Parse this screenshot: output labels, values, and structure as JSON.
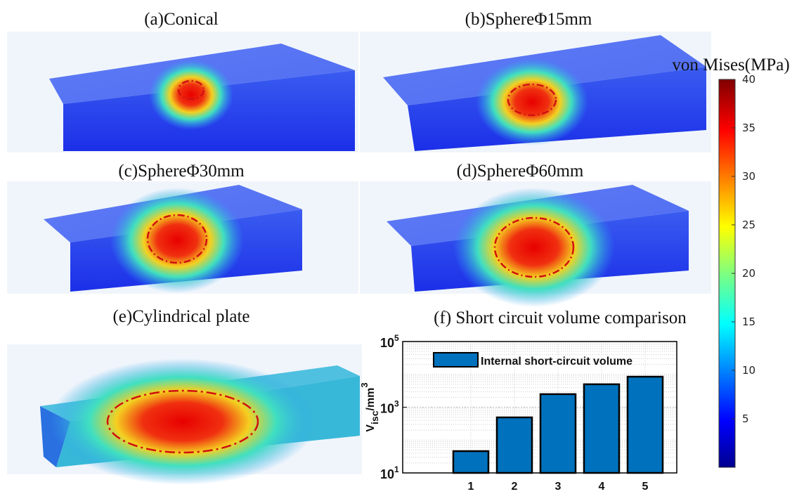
{
  "panels": [
    "(a)Conical",
    "(b)SphereΦ15mm",
    "(c)SphereΦ30mm",
    "(d)SphereΦ60mm",
    "(e)Cylindrical plate"
  ],
  "colorbar": {
    "label": "von Mises(MPa)",
    "lim": [
      0,
      40
    ],
    "ticks": [
      5,
      10,
      15,
      20,
      25,
      30,
      35,
      40
    ]
  },
  "chart_data": {
    "type": "bar",
    "title": "(f) Short circuit volume comparison",
    "categories": [
      "1",
      "2",
      "3",
      "4",
      "5"
    ],
    "series": [
      {
        "name": "Internal short-circuit volume",
        "color": "#0072bd",
        "values": [
          46,
          490,
          2500,
          5000,
          8500
        ]
      }
    ],
    "ylabel": {
      "main": "V",
      "sub": "isc",
      "rest": "/mm",
      "sup": "3"
    },
    "log_y": true,
    "ylim": [
      10,
      100000
    ],
    "yticks": [
      {
        "value": 10,
        "label": "10",
        "sup": "1"
      },
      {
        "value": 1000,
        "label": "10",
        "sup": "3"
      },
      {
        "value": 100000,
        "label": "10",
        "sup": "5"
      }
    ],
    "grid": true,
    "legend": "upper left"
  }
}
